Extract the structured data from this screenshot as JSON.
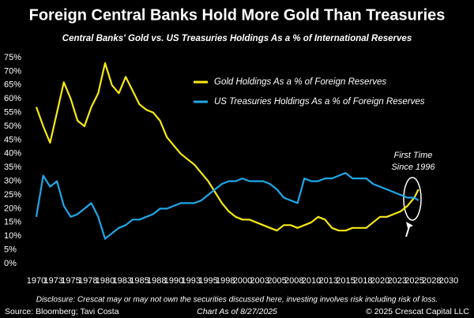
{
  "chart_data": {
    "type": "line",
    "title": "Foreign Central Banks Hold More Gold Than Treasuries",
    "subtitle": "Central Banks' Gold vs. US Treasuries Holdings As a % of International Reserves",
    "x": [
      1970,
      1971,
      1972,
      1973,
      1974,
      1975,
      1976,
      1977,
      1978,
      1979,
      1980,
      1981,
      1982,
      1983,
      1984,
      1985,
      1986,
      1987,
      1988,
      1989,
      1990,
      1991,
      1992,
      1993,
      1994,
      1995,
      1996,
      1997,
      1998,
      1999,
      2000,
      2001,
      2002,
      2003,
      2004,
      2005,
      2006,
      2007,
      2008,
      2009,
      2010,
      2011,
      2012,
      2013,
      2014,
      2015,
      2016,
      2017,
      2018,
      2019,
      2020,
      2021,
      2022,
      2023,
      2024,
      2025,
      2025.6
    ],
    "series": [
      {
        "name": "Gold Holdings As a % of Foreign Reserves",
        "color": "#f7ea10",
        "values": [
          57,
          50,
          44,
          55,
          66,
          60,
          52,
          50,
          57,
          62,
          73,
          65,
          62,
          68,
          63,
          58,
          56,
          55,
          52,
          46,
          43,
          40,
          38,
          36,
          33,
          30,
          26,
          22,
          19,
          17,
          16,
          16,
          15,
          14,
          13,
          12,
          14,
          14,
          13,
          14,
          15,
          17,
          16,
          13,
          12,
          12,
          13,
          13,
          13,
          15,
          17,
          17,
          18,
          19,
          21,
          24,
          27
        ]
      },
      {
        "name": "US Treasuries Holdings As a % of Foreign Reserves",
        "color": "#1ea8e8",
        "values": [
          17,
          32,
          28,
          30,
          21,
          17,
          18,
          20,
          22,
          17,
          9,
          11,
          13,
          14,
          16,
          16,
          17,
          18,
          20,
          20,
          21,
          22,
          22,
          22,
          23,
          25,
          27,
          29,
          30,
          30,
          31,
          30,
          30,
          30,
          29,
          27,
          24,
          23,
          22,
          31,
          30,
          30,
          31,
          31,
          32,
          33,
          31,
          31,
          31,
          29,
          28,
          27,
          26,
          25,
          24,
          24,
          23
        ]
      }
    ],
    "xlim": [
      1969,
      2031
    ],
    "ylim": [
      0,
      75
    ],
    "xticks": [
      1970,
      {
        "value": 1972.5,
        "label": "1973"
      },
      1975,
      {
        "value": 1977.5,
        "label": "1978"
      },
      1980,
      {
        "value": 1982.5,
        "label": "1983"
      },
      1985,
      {
        "value": 1987.5,
        "label": "1988"
      },
      1990,
      {
        "value": 1992.5,
        "label": "1993"
      },
      1995,
      {
        "value": 1997.5,
        "label": "1998"
      },
      2000,
      {
        "value": 2002.5,
        "label": "2003"
      },
      2005,
      {
        "value": 2007.5,
        "label": "2008"
      },
      2010,
      {
        "value": 2012.5,
        "label": "2013"
      },
      2015,
      {
        "value": 2017.5,
        "label": "2018"
      },
      2020,
      {
        "value": 2022.5,
        "label": "2023"
      },
      2025,
      {
        "value": 2027.5,
        "label": "2028"
      },
      2030
    ],
    "yticks": [
      {
        "value": 0,
        "label": "0%"
      },
      {
        "value": 5,
        "label": "5%"
      },
      {
        "value": 10,
        "label": "10%"
      },
      {
        "value": 15,
        "label": "15%"
      },
      {
        "value": 20,
        "label": "20%"
      },
      {
        "value": 25,
        "label": "25%"
      },
      {
        "value": 30,
        "label": "30%"
      },
      {
        "value": 35,
        "label": "35%"
      },
      {
        "value": 40,
        "label": "40%"
      },
      {
        "value": 45,
        "label": "45%"
      },
      {
        "value": 50,
        "label": "50%"
      },
      {
        "value": 55,
        "label": "55%"
      },
      {
        "value": 60,
        "label": "60%"
      },
      {
        "value": 65,
        "label": "65%"
      },
      {
        "value": 70,
        "label": "70%"
      },
      {
        "value": 75,
        "label": "75%"
      }
    ],
    "grid": false,
    "legend": "upper right",
    "annotation": [
      "First Time",
      "Since 1996"
    ],
    "disclosure": "Disclosure: Crescat may or may not own the securities discussed here, investing involves risk including risk of loss.",
    "source": "Source: Bloomberg; Tavi Costa",
    "date_note": "Chart As of 8/27/2025",
    "copyright": "© 2025 Crescat Capital LLC"
  }
}
